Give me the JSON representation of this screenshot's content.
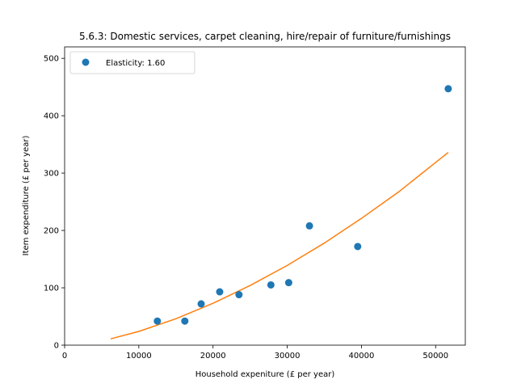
{
  "chart_data": {
    "type": "scatter",
    "title": "5.6.3: Domestic services, carpet cleaning, hire/repair of furniture/furnishings",
    "xlabel": "Household expeniture (£ per year)",
    "ylabel": "Item expenditure (£ per year)",
    "xlim": [
      0,
      54000
    ],
    "ylim": [
      0,
      520
    ],
    "xticks": [
      0,
      10000,
      20000,
      30000,
      40000,
      50000
    ],
    "yticks": [
      0,
      100,
      200,
      300,
      400,
      500
    ],
    "grid": false,
    "legend_position": "top-left",
    "series": [
      {
        "name": "Elasticity: 1.60",
        "kind": "scatter",
        "color": "#1f77b4",
        "x": [
          12500,
          16200,
          18400,
          20900,
          23500,
          27800,
          30200,
          33000,
          39500,
          51700
        ],
        "y": [
          42,
          42,
          72,
          93,
          88,
          105,
          109,
          208,
          172,
          447
        ]
      },
      {
        "kind": "line",
        "color": "#ff7f0e",
        "x": [
          6200,
          10000,
          15000,
          20000,
          25000,
          30000,
          35000,
          40000,
          45000,
          51700
        ],
        "y": [
          11,
          24,
          46,
          73,
          104,
          139,
          178,
          221,
          267,
          336
        ]
      }
    ]
  }
}
